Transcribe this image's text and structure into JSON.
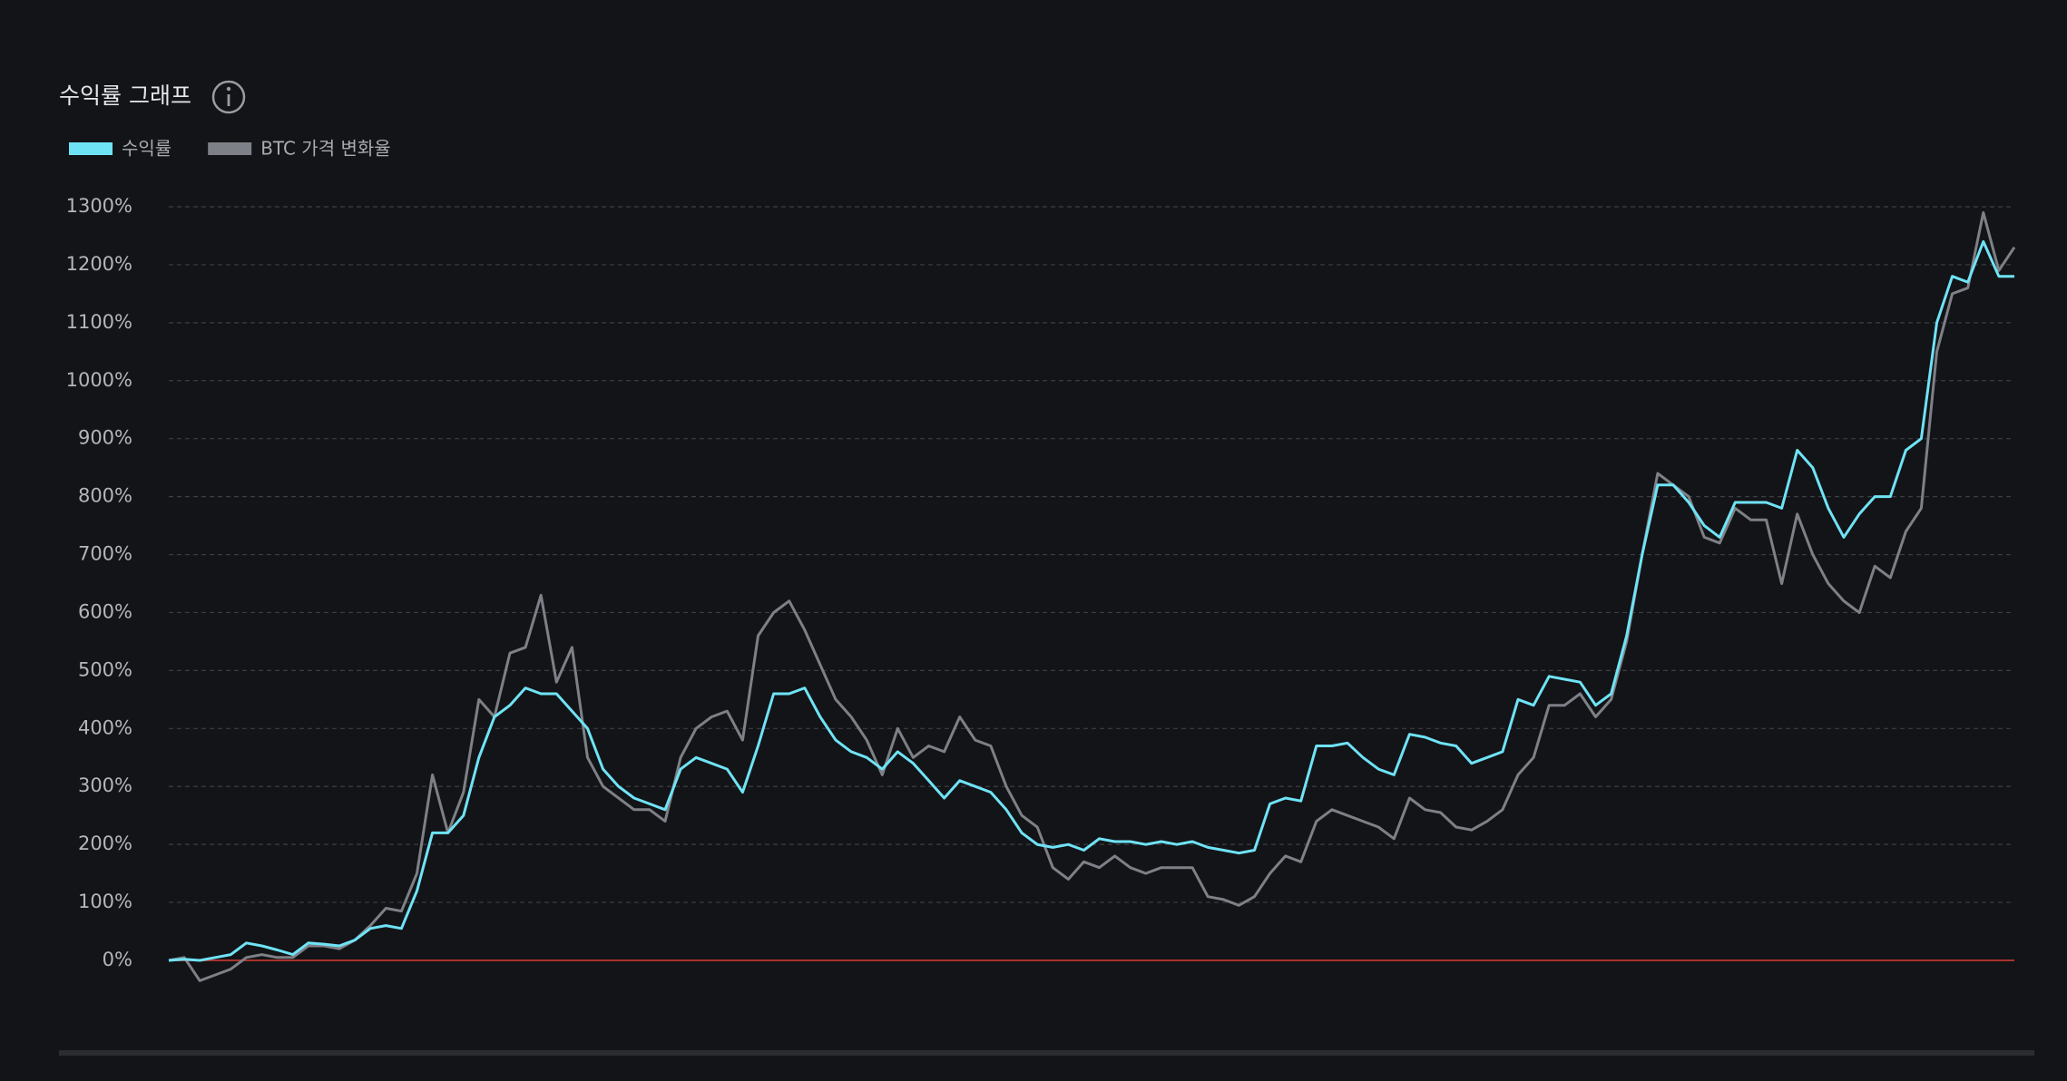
{
  "chart_data": {
    "type": "line",
    "title": "수익률 그래프",
    "ylim": [
      0,
      1300
    ],
    "yticks": [
      {
        "value": 0,
        "label": "0%"
      },
      {
        "value": 100,
        "label": "100%"
      },
      {
        "value": 200,
        "label": "200%"
      },
      {
        "value": 300,
        "label": "300%"
      },
      {
        "value": 400,
        "label": "400%"
      },
      {
        "value": 500,
        "label": "500%"
      },
      {
        "value": 600,
        "label": "600%"
      },
      {
        "value": 700,
        "label": "700%"
      },
      {
        "value": 800,
        "label": "800%"
      },
      {
        "value": 900,
        "label": "900%"
      },
      {
        "value": 1000,
        "label": "1000%"
      },
      {
        "value": 1100,
        "label": "1100%"
      },
      {
        "value": 1200,
        "label": "1200%"
      },
      {
        "value": 1300,
        "label": "1300%"
      }
    ],
    "grid": true,
    "series": [
      {
        "name": "수익률",
        "color": "#6fe3f6",
        "values": [
          0,
          2,
          0,
          5,
          10,
          30,
          25,
          18,
          10,
          30,
          28,
          25,
          35,
          55,
          60,
          55,
          120,
          220,
          220,
          250,
          350,
          420,
          440,
          470,
          460,
          460,
          430,
          400,
          330,
          300,
          280,
          270,
          260,
          330,
          350,
          340,
          330,
          290,
          370,
          460,
          460,
          470,
          420,
          380,
          360,
          350,
          330,
          360,
          340,
          310,
          280,
          310,
          300,
          290,
          260,
          220,
          200,
          195,
          200,
          190,
          210,
          205,
          205,
          200,
          205,
          200,
          205,
          195,
          190,
          185,
          190,
          270,
          280,
          275,
          370,
          370,
          375,
          350,
          330,
          320,
          390,
          385,
          375,
          370,
          340,
          350,
          360,
          450,
          440,
          490,
          485,
          480,
          440,
          460,
          560,
          700,
          820,
          820,
          790,
          750,
          730,
          790,
          790,
          790,
          780,
          880,
          850,
          780,
          730,
          770,
          800,
          800,
          880,
          900,
          1100,
          1180,
          1170,
          1240,
          1180,
          1180
        ]
      },
      {
        "name": "BTC 가격 변화율",
        "color": "#7e8087",
        "values": [
          0,
          5,
          -35,
          -25,
          -15,
          5,
          10,
          5,
          5,
          25,
          25,
          20,
          35,
          60,
          90,
          85,
          150,
          320,
          220,
          290,
          450,
          420,
          530,
          540,
          630,
          480,
          540,
          350,
          300,
          280,
          260,
          260,
          240,
          350,
          400,
          420,
          430,
          380,
          560,
          600,
          620,
          570,
          510,
          450,
          420,
          380,
          320,
          400,
          350,
          370,
          360,
          420,
          380,
          370,
          300,
          250,
          230,
          160,
          140,
          170,
          160,
          180,
          160,
          150,
          160,
          160,
          160,
          110,
          105,
          95,
          110,
          150,
          180,
          170,
          240,
          260,
          250,
          240,
          230,
          210,
          280,
          260,
          255,
          230,
          225,
          240,
          260,
          320,
          350,
          440,
          440,
          460,
          420,
          450,
          550,
          700,
          840,
          820,
          800,
          730,
          720,
          780,
          760,
          760,
          650,
          770,
          700,
          650,
          620,
          600,
          680,
          660,
          740,
          780,
          1050,
          1150,
          1160,
          1290,
          1190,
          1230
        ]
      }
    ]
  }
}
